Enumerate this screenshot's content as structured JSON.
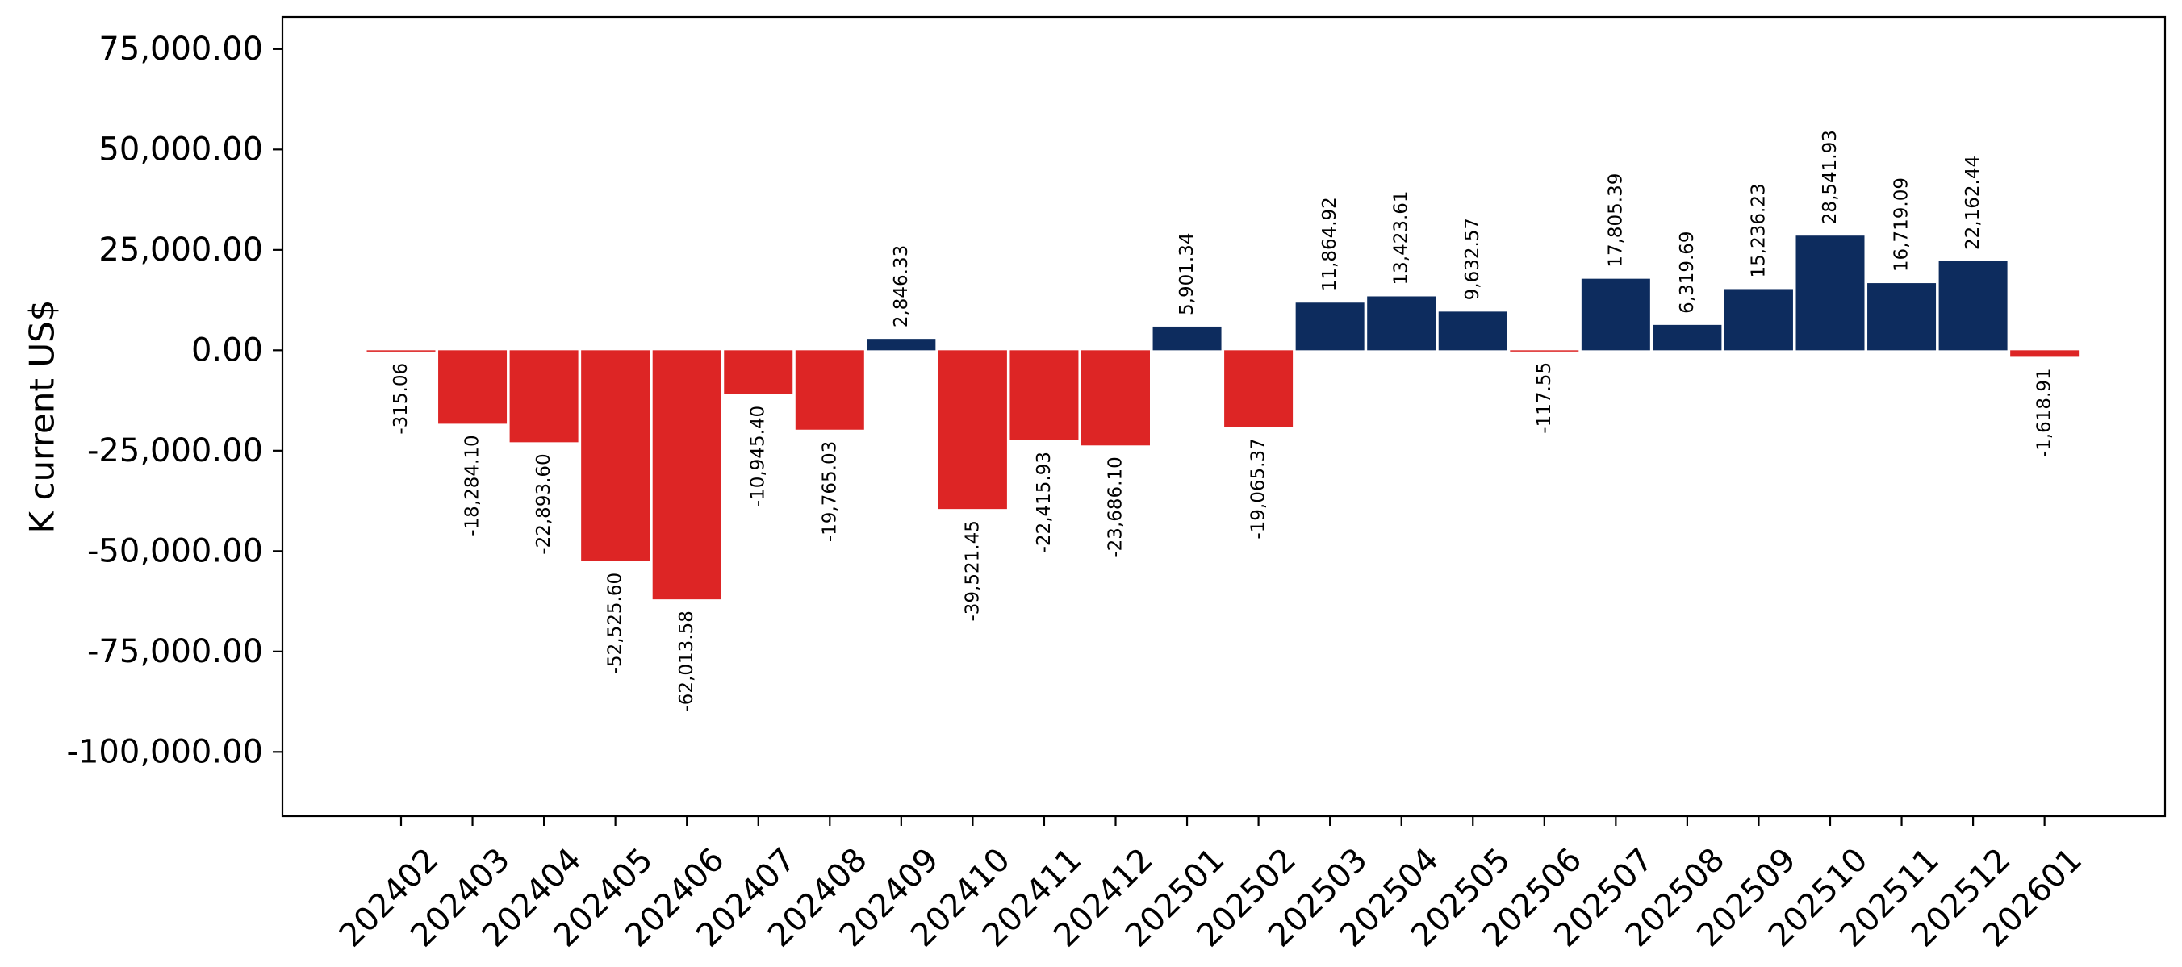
{
  "chart_data": {
    "type": "bar",
    "title": "",
    "xlabel": "",
    "ylabel": "K current US$",
    "ylim": [
      -116000,
      83000
    ],
    "yticks": [
      75000,
      50000,
      25000,
      0,
      -25000,
      -50000,
      -75000,
      -100000
    ],
    "ytick_labels": [
      "75,000.00",
      "50,000.00",
      "25,000.00",
      "0.00",
      "-25,000.00",
      "-50,000.00",
      "-75,000.00",
      "-100,000.00"
    ],
    "grid": false,
    "legend": "none",
    "colors": {
      "positive": "#0d2c5e",
      "negative": "#dd2525"
    },
    "categories": [
      "202402",
      "202403",
      "202404",
      "202405",
      "202406",
      "202407",
      "202408",
      "202409",
      "202410",
      "202411",
      "202412",
      "202501",
      "202502",
      "202503",
      "202504",
      "202505",
      "202506",
      "202507",
      "202508",
      "202509",
      "202510",
      "202511",
      "202512",
      "202601"
    ],
    "values": [
      -315.06,
      -18284.1,
      -22893.6,
      -52525.6,
      -62013.58,
      -10945.4,
      -19765.03,
      2846.33,
      -39521.45,
      -22415.93,
      -23686.1,
      5901.34,
      -19065.37,
      11864.92,
      13423.61,
      9632.57,
      -117.55,
      17805.39,
      6319.69,
      15236.23,
      28541.93,
      16719.09,
      22162.44,
      -1618.91
    ],
    "value_labels": [
      "-315.06",
      "-18,284.10",
      "-22,893.60",
      "-52,525.60",
      "-62,013.58",
      "-10,945.40",
      "-19,765.03",
      "2,846.33",
      "-39,521.45",
      "-22,415.93",
      "-23,686.10",
      "5,901.34",
      "-19,065.37",
      "11,864.92",
      "13,423.61",
      "9,632.57",
      "-117.55",
      "17,805.39",
      "6,319.69",
      "15,236.23",
      "28,541.93",
      "16,719.09",
      "22,162.44",
      "-1,618.91"
    ]
  }
}
